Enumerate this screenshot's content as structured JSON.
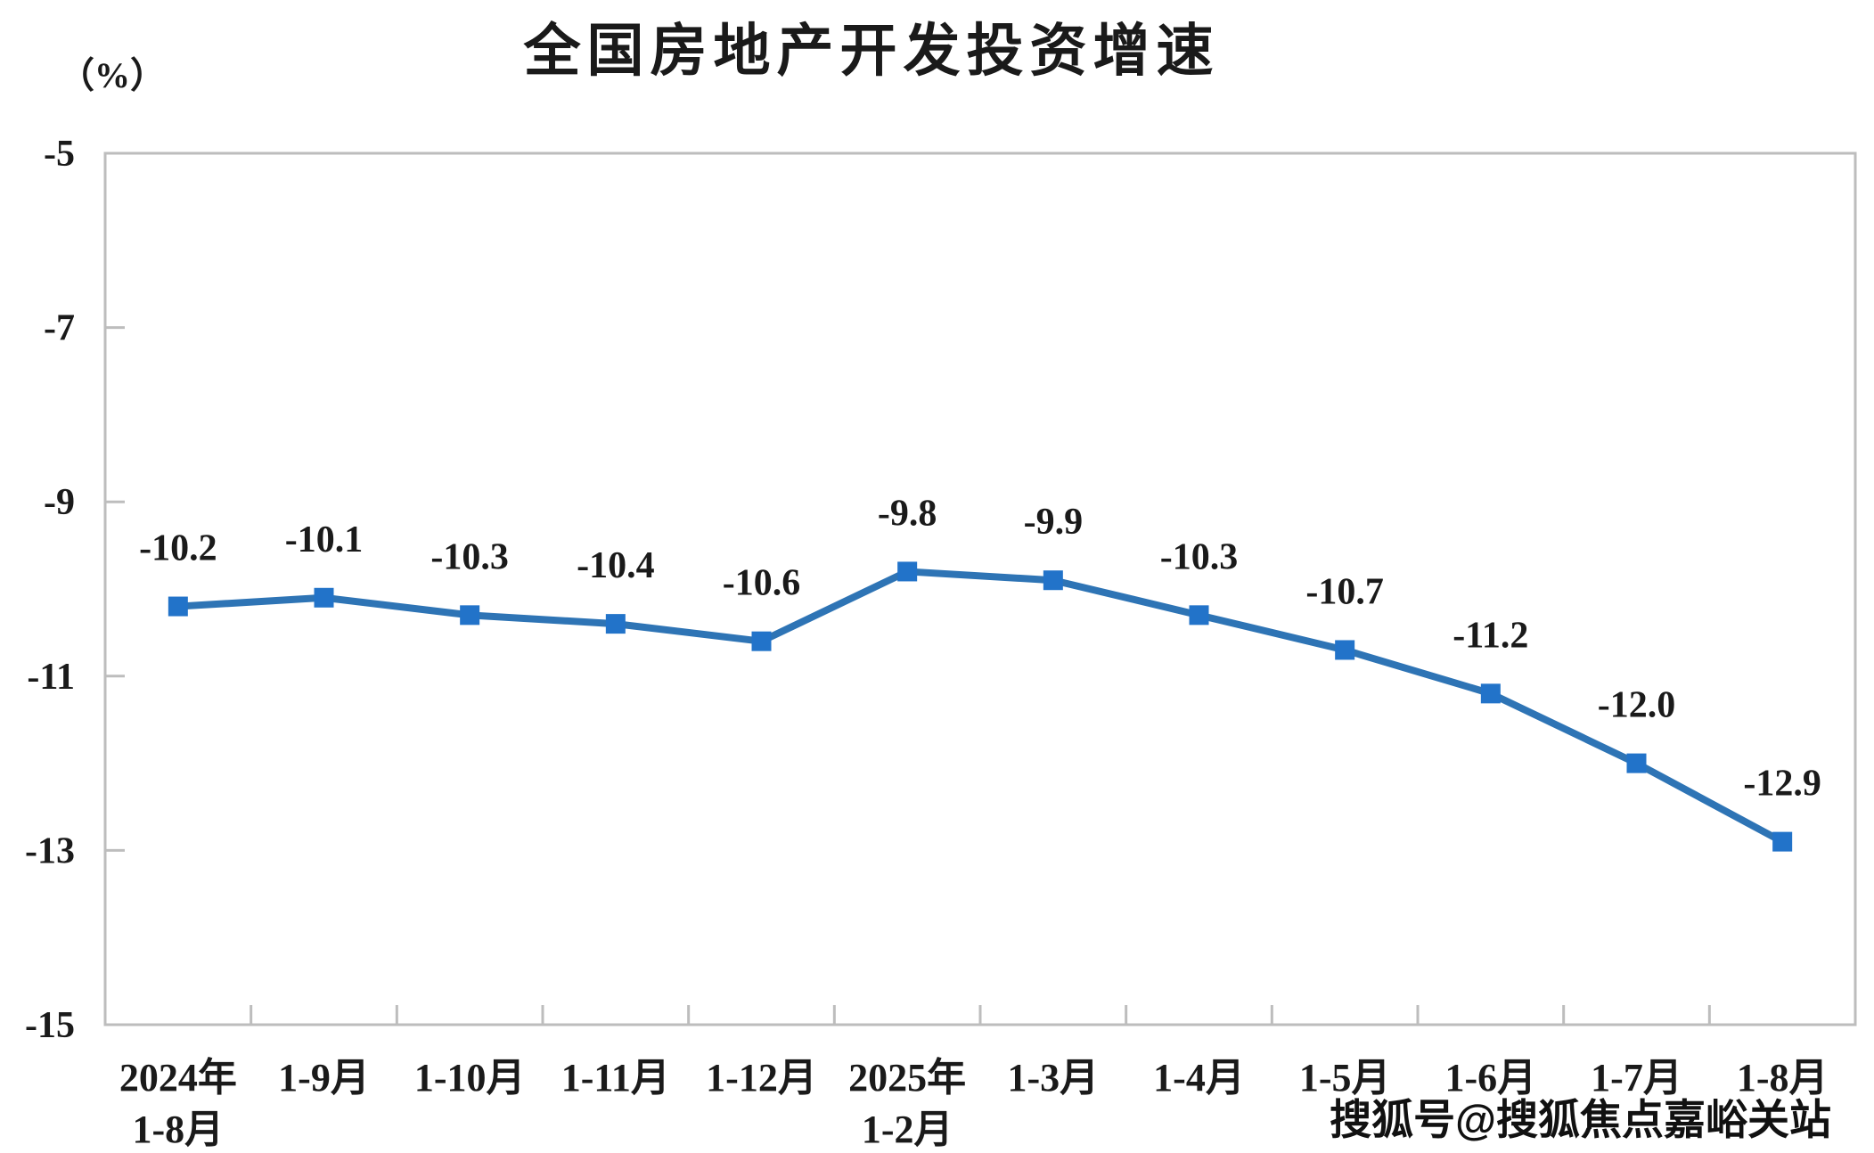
{
  "chart_data": {
    "type": "line",
    "title": "全国房地产开发投资增速",
    "ylabel": "（%）",
    "categories": [
      [
        "2024年",
        "1-8月"
      ],
      [
        "1-9月"
      ],
      [
        "1-10月"
      ],
      [
        "1-11月"
      ],
      [
        "1-12月"
      ],
      [
        "2025年",
        "1-2月"
      ],
      [
        "1-3月"
      ],
      [
        "1-4月"
      ],
      [
        "1-5月"
      ],
      [
        "1-6月"
      ],
      [
        "1-7月"
      ],
      [
        "1-8月"
      ]
    ],
    "values": [
      -10.2,
      -10.1,
      -10.3,
      -10.4,
      -10.6,
      -9.8,
      -9.9,
      -10.3,
      -10.7,
      -11.2,
      -12.0,
      -12.9
    ],
    "point_labels": [
      "-10.2",
      "-10.1",
      "-10.3",
      "-10.4",
      "-10.6",
      "-9.8",
      "-9.9",
      "-10.3",
      "-10.7",
      "-11.2",
      "-12.0",
      "-12.9"
    ],
    "y_ticks": [
      -5,
      -7,
      -9,
      -11,
      -13,
      -15
    ],
    "y_tick_labels": [
      "-5",
      "-7",
      "-9",
      "-11",
      "-13",
      "-15"
    ],
    "ylim": [
      -15,
      -5
    ],
    "grid": false,
    "legend": false,
    "line_color": "#2E74B5",
    "marker_color": "#2273C9",
    "axis_color": "#BDBDBD",
    "text_color": "#1A1A1A"
  },
  "watermark": {
    "text": "搜狐号@搜狐焦点嘉峪关站"
  }
}
